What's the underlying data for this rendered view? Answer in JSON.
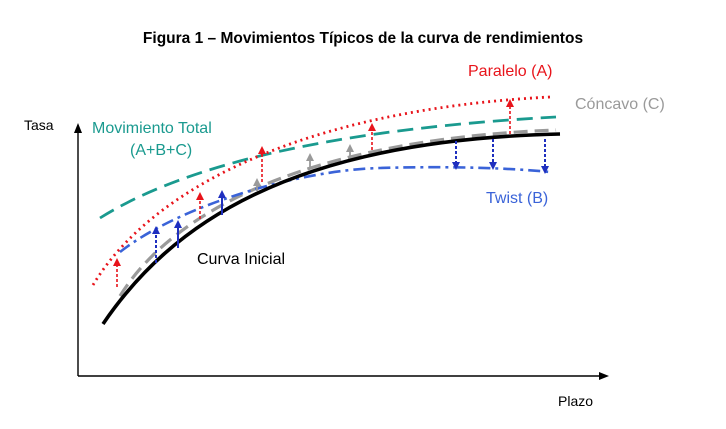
{
  "figure": {
    "title": "Figura 1 – Movimientos Típicos de la curva de rendimientos",
    "axis": {
      "y_label": "Tasa",
      "x_label": "Plazo"
    },
    "labels": {
      "paralelo": "Paralelo (A)",
      "concavo": "Cóncavo (C)",
      "movimiento_total_line1": "Movimiento Total",
      "movimiento_total_line2": "(A+B+C)",
      "twist": "Twist (B)",
      "curva_inicial": "Curva Inicial"
    },
    "colors": {
      "initial": "#000000",
      "parallel": "#e8141b",
      "concave": "#9a9a9a",
      "total": "#1a9a8f",
      "twist": "#3a63d8",
      "twist_arrow": "#1f2fbf"
    }
  }
}
